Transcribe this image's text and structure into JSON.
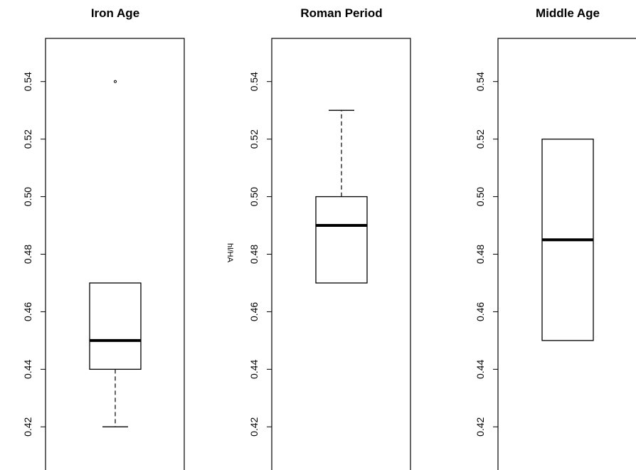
{
  "chart_data": [
    {
      "type": "box",
      "title": "Iron Age",
      "ylabel": "",
      "ylim": [
        0.405,
        0.555
      ],
      "yticks": [
        "0.42",
        "0.44",
        "0.46",
        "0.48",
        "0.50",
        "0.52",
        "0.54"
      ],
      "box": {
        "whisker_low": 0.42,
        "q1": 0.44,
        "median": 0.45,
        "q3": 0.47,
        "whisker_high": 0.47,
        "outliers": [
          0.54
        ]
      }
    },
    {
      "type": "box",
      "title": "Roman Period",
      "ylabel": "hl/HA",
      "ylim": [
        0.405,
        0.555
      ],
      "yticks": [
        "0.42",
        "0.44",
        "0.46",
        "0.48",
        "0.50",
        "0.52",
        "0.54"
      ],
      "box": {
        "whisker_low": 0.47,
        "q1": 0.47,
        "median": 0.49,
        "q3": 0.5,
        "whisker_high": 0.53,
        "outliers": []
      }
    },
    {
      "type": "box",
      "title": "Middle Age",
      "ylabel": "",
      "ylim": [
        0.405,
        0.555
      ],
      "yticks": [
        "0.42",
        "0.44",
        "0.46",
        "0.48",
        "0.50",
        "0.52",
        "0.54"
      ],
      "box": {
        "whisker_low": 0.45,
        "q1": 0.45,
        "median": 0.485,
        "q3": 0.52,
        "whisker_high": 0.52,
        "outliers": []
      }
    }
  ]
}
